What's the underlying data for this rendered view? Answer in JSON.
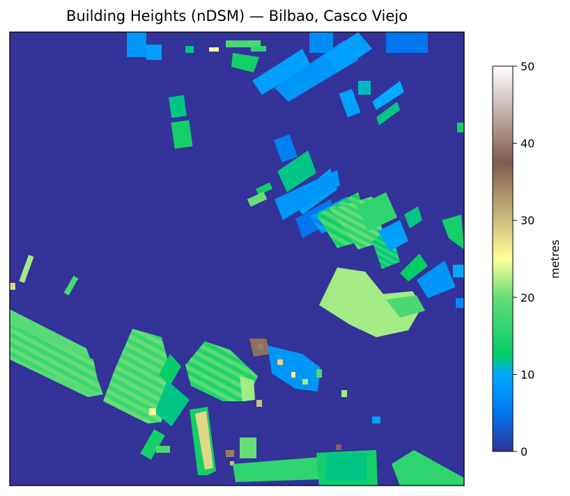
{
  "chart_data": {
    "type": "heatmap",
    "title": "Building Heights (nDSM) — Bilbao, Casco Viejo",
    "xlabel": "",
    "ylabel": "",
    "colormap": "terrain",
    "colorbar": {
      "label": "metres",
      "range": [
        0,
        50
      ],
      "ticks": [
        0,
        10,
        20,
        30,
        40,
        50
      ],
      "stops": [
        {
          "v": 0,
          "color": "#333399"
        },
        {
          "v": 5,
          "color": "#0077ee"
        },
        {
          "v": 10,
          "color": "#00aaff"
        },
        {
          "v": 12.5,
          "color": "#00cc66"
        },
        {
          "v": 20,
          "color": "#66dd77"
        },
        {
          "v": 25,
          "color": "#ffff99"
        },
        {
          "v": 37.5,
          "color": "#805c50"
        },
        {
          "v": 50,
          "color": "#ffffff"
        }
      ]
    },
    "background_value": 0,
    "buildings": [
      {
        "id": "riverside-block-west",
        "approx_height_m": 19
      },
      {
        "id": "ribbed-block-center-left",
        "approx_height_m": 20
      },
      {
        "id": "ribbed-block-center",
        "approx_height_m": 19
      },
      {
        "id": "tall-narrow-block",
        "approx_height_m": 26
      },
      {
        "id": "plaza-block-east",
        "approx_height_m": 22
      },
      {
        "id": "upper-row-blocks",
        "approx_height_m": 9
      },
      {
        "id": "mid-row-blocks",
        "approx_height_m": 13
      },
      {
        "id": "bottom-row-blocks",
        "approx_height_m": 16
      },
      {
        "id": "church-towers",
        "approx_height_m": 35
      }
    ]
  }
}
